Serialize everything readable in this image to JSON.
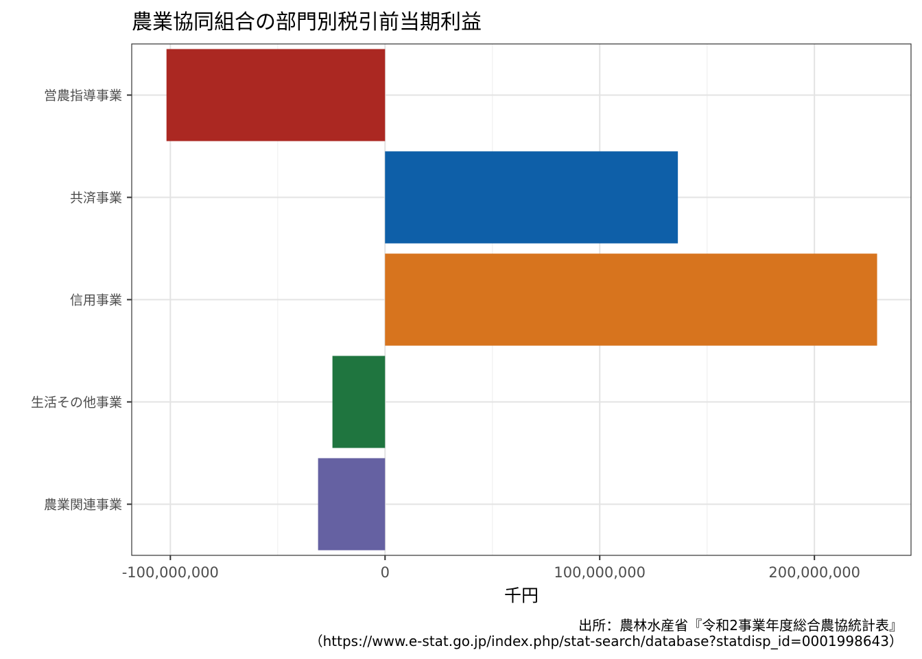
{
  "chart_data": {
    "type": "bar",
    "orientation": "horizontal",
    "title": "農業協同組合の部門別税引前当期利益",
    "xlabel": "千円",
    "ylabel": "",
    "categories": [
      "営農指導事業",
      "共済事業",
      "信用事業",
      "生活その他事業",
      "農業関連事業"
    ],
    "values": [
      -101800000,
      136400000,
      229200000,
      -24500000,
      -31200000
    ],
    "colors": [
      "#ab2822",
      "#0e5fa8",
      "#d7741e",
      "#1f753f",
      "#6561a2"
    ],
    "xlim": [
      -118000000,
      245000000
    ],
    "x_ticks": [
      -100000000,
      0,
      100000000,
      200000000
    ],
    "x_tick_labels": [
      "-100,000,000",
      "0",
      "100,000,000",
      "200,000,000"
    ],
    "grid": true,
    "legend": "none",
    "caption_lines": [
      "出所：農林水産省『令和2事業年度総合農協統計表』",
      "（https://www.e-stat.go.jp/index.php/stat-search/database?statdisp_id=0001998643）"
    ]
  }
}
